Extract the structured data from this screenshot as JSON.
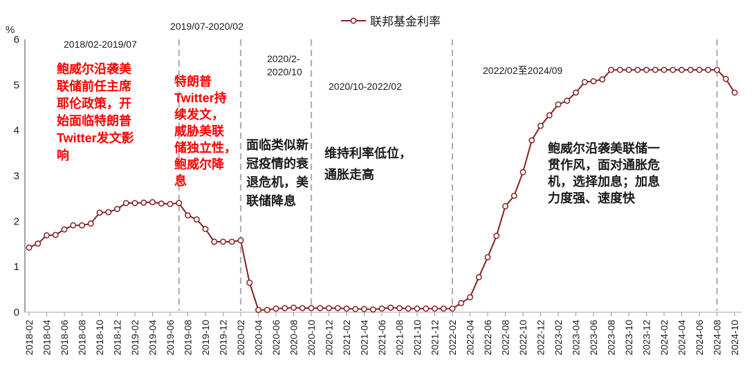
{
  "legend": {
    "label": "联邦基金利率"
  },
  "axis": {
    "unit_label": "%"
  },
  "colors": {
    "series": "#832121",
    "marker_fill": "#ffffff",
    "separator": "#b0b0b0",
    "y_axis": "#808080",
    "x_axis": "#c4c4c4",
    "annotation_red": "#ff0000",
    "annotation_black": "#1a1a1a"
  },
  "annotations": {
    "period1": {
      "label": "2018/02-2019/07",
      "text": "鲍威尔沿袭美\n联储前任主席\n耶伦政策，开\n始面临特朗普\nTwitter发文影\n响"
    },
    "period2": {
      "label": "2019/07-2020/02",
      "text": "特朗普\nTwitter持\n续发文，\n威胁美联\n储独立性，\n鲍威尔降\n息"
    },
    "period3": {
      "label": "2020/2-\n2020/10",
      "text": "面临类似新\n冠疫情的衰\n退危机，美\n联储降息"
    },
    "period4": {
      "label": "2020/10-2022/02",
      "text": "维持利率低位，\n通胀走高"
    },
    "period5": {
      "label": "2022/02至2024/09",
      "text": "鲍威尔沿袭美联储一\n贯作风，面对通胀危\n机，选择加息；加息\n力度强、速度快"
    }
  },
  "chart_data": {
    "type": "line",
    "title": "联邦基金利率",
    "xlabel": "",
    "ylabel": "%",
    "ylim": [
      0,
      6
    ],
    "y_ticks": [
      0,
      1,
      2,
      3,
      4,
      5,
      6
    ],
    "grid": false,
    "legend_position": "top-center",
    "separators": [
      "2019-07",
      "2020-02",
      "2020-10",
      "2022-02",
      "2024-08"
    ],
    "x": [
      "2018-02",
      "2018-03",
      "2018-04",
      "2018-05",
      "2018-06",
      "2018-07",
      "2018-08",
      "2018-09",
      "2018-10",
      "2018-11",
      "2018-12",
      "2019-01",
      "2019-02",
      "2019-03",
      "2019-04",
      "2019-05",
      "2019-06",
      "2019-07",
      "2019-08",
      "2019-09",
      "2019-10",
      "2019-11",
      "2019-12",
      "2020-01",
      "2020-02",
      "2020-03",
      "2020-04",
      "2020-05",
      "2020-06",
      "2020-07",
      "2020-08",
      "2020-09",
      "2020-10",
      "2020-11",
      "2020-12",
      "2021-01",
      "2021-02",
      "2021-03",
      "2021-04",
      "2021-05",
      "2021-06",
      "2021-07",
      "2021-08",
      "2021-09",
      "2021-10",
      "2021-11",
      "2021-12",
      "2022-01",
      "2022-02",
      "2022-03",
      "2022-04",
      "2022-05",
      "2022-06",
      "2022-07",
      "2022-08",
      "2022-09",
      "2022-10",
      "2022-11",
      "2022-12",
      "2023-01",
      "2023-02",
      "2023-03",
      "2023-04",
      "2023-05",
      "2023-06",
      "2023-07",
      "2023-08",
      "2023-09",
      "2023-10",
      "2023-11",
      "2023-12",
      "2024-01",
      "2024-02",
      "2024-03",
      "2024-04",
      "2024-05",
      "2024-06",
      "2024-07",
      "2024-08",
      "2024-09",
      "2024-10"
    ],
    "x_tick_labels": [
      "2018-02",
      "2018-04",
      "2018-06",
      "2018-08",
      "2018-10",
      "2018-12",
      "2019-02",
      "2019-04",
      "2019-06",
      "2019-08",
      "2019-10",
      "2019-12",
      "2020-02",
      "2020-04",
      "2020-06",
      "2020-08",
      "2020-10",
      "2020-12",
      "2021-02",
      "2021-04",
      "2021-06",
      "2021-08",
      "2021-10",
      "2021-12",
      "2022-02",
      "2022-04",
      "2022-06",
      "2022-08",
      "2022-10",
      "2022-12",
      "2023-02",
      "2023-04",
      "2023-06",
      "2023-08",
      "2023-10",
      "2023-12",
      "2024-02",
      "2024-04",
      "2024-06",
      "2024-08",
      "2024-10"
    ],
    "series": [
      {
        "name": "联邦基金利率",
        "color": "#832121",
        "marker": "open-circle",
        "values": [
          1.42,
          1.51,
          1.69,
          1.7,
          1.82,
          1.91,
          1.91,
          1.95,
          2.19,
          2.2,
          2.27,
          2.4,
          2.4,
          2.41,
          2.42,
          2.39,
          2.38,
          2.4,
          2.13,
          2.04,
          1.83,
          1.55,
          1.55,
          1.55,
          1.58,
          0.65,
          0.05,
          0.05,
          0.08,
          0.09,
          0.1,
          0.09,
          0.09,
          0.09,
          0.09,
          0.09,
          0.08,
          0.07,
          0.07,
          0.06,
          0.08,
          0.1,
          0.09,
          0.08,
          0.08,
          0.08,
          0.08,
          0.08,
          0.08,
          0.2,
          0.33,
          0.77,
          1.21,
          1.68,
          2.33,
          2.56,
          3.08,
          3.78,
          4.1,
          4.33,
          4.57,
          4.65,
          4.83,
          5.06,
          5.08,
          5.12,
          5.33,
          5.33,
          5.33,
          5.33,
          5.33,
          5.33,
          5.33,
          5.33,
          5.33,
          5.33,
          5.33,
          5.33,
          5.33,
          5.13,
          4.83
        ]
      }
    ]
  }
}
